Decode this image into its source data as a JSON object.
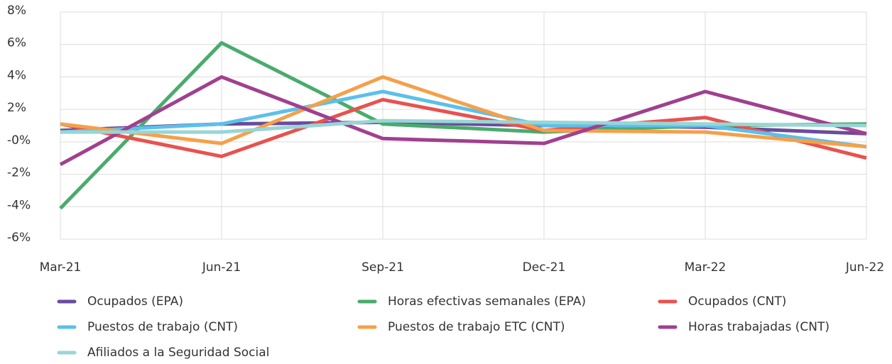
{
  "chart_data": {
    "type": "line",
    "categories": [
      "Mar-21",
      "Jun-21",
      "Sep-21",
      "Dec-21",
      "Mar-22",
      "Jun-22"
    ],
    "series": [
      {
        "name": "Ocupados (EPA)",
        "color": "#6a4c9c",
        "values": [
          0.7,
          1.1,
          1.2,
          1.0,
          0.9,
          0.5
        ]
      },
      {
        "name": "Horas efectivas semanales (EPA)",
        "color": "#4aab6d",
        "values": [
          -4.1,
          6.1,
          1.1,
          0.6,
          1.0,
          1.1
        ]
      },
      {
        "name": "Ocupados (CNT)",
        "color": "#e8524f",
        "values": [
          1.1,
          -0.9,
          2.6,
          0.7,
          1.5,
          -1.0
        ]
      },
      {
        "name": "Puestos de trabajo (CNT)",
        "color": "#5bc0eb",
        "values": [
          0.6,
          1.1,
          3.1,
          1.0,
          1.0,
          -0.3
        ]
      },
      {
        "name": "Puestos de trabajo ETC (CNT)",
        "color": "#f5a04a",
        "values": [
          1.1,
          -0.1,
          4.0,
          0.7,
          0.6,
          -0.3
        ]
      },
      {
        "name": "Horas trabajadas (CNT)",
        "color": "#a0408f",
        "values": [
          -1.4,
          4.0,
          0.2,
          -0.1,
          3.1,
          0.5
        ]
      },
      {
        "name": "Afiliados a la Seguridad Social",
        "color": "#99d5d6",
        "values": [
          0.6,
          0.6,
          1.3,
          1.2,
          1.1,
          1.0
        ]
      }
    ],
    "ylim": [
      -6,
      8
    ],
    "yticks": [
      {
        "value": -6,
        "label": "-6%"
      },
      {
        "value": -4,
        "label": "-4%"
      },
      {
        "value": -2,
        "label": "-2%"
      },
      {
        "value": 0,
        "label": "-0%"
      },
      {
        "value": 2,
        "label": "2%"
      },
      {
        "value": 4,
        "label": "4%"
      },
      {
        "value": 6,
        "label": "6%"
      },
      {
        "value": 8,
        "label": "8%"
      }
    ],
    "grid": true
  }
}
